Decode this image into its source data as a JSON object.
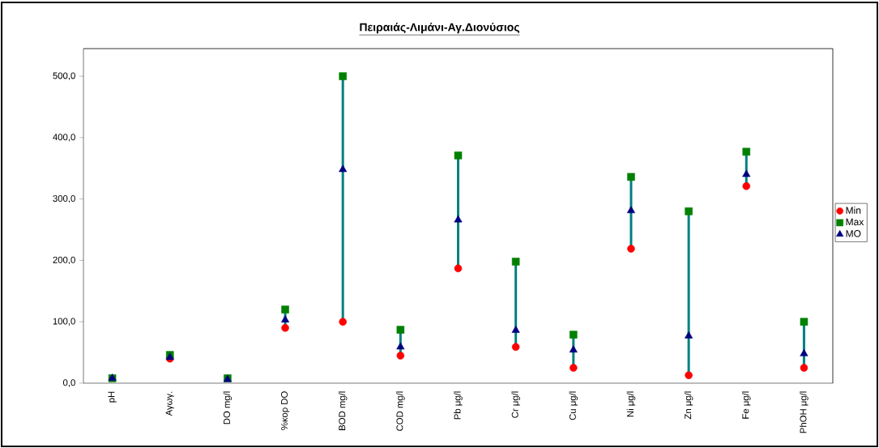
{
  "chart_data": {
    "type": "scatter",
    "title": "Πειραιάς-Λιμάνι-Αγ.Διονύσιος",
    "categories": [
      "pH",
      "Αγωγ.",
      "DO mg/l",
      "%κορ DO",
      "BOD mg/l",
      "COD mg/l",
      "Pb μg/l",
      "Cr μg/l",
      "Cu μg/l",
      "Ni μg/l",
      "Zn μg/l",
      "Fe μg/l",
      "PhOH μg/l"
    ],
    "series": [
      {
        "name": "Min",
        "color": "#ff0000",
        "marker": "circle",
        "values": [
          null,
          40,
          null,
          90,
          100,
          45,
          187,
          59,
          25,
          219,
          13,
          321,
          25
        ]
      },
      {
        "name": "Max",
        "color": "#008000",
        "marker": "square",
        "values": [
          8,
          46,
          8,
          120,
          500,
          87,
          371,
          198,
          79,
          336,
          280,
          377,
          100
        ]
      },
      {
        "name": "MO",
        "color": "#000080",
        "marker": "triangle",
        "values": [
          8,
          42,
          6,
          103,
          348,
          59,
          266,
          86,
          54,
          281,
          77,
          340,
          48
        ]
      }
    ],
    "ylim": [
      0,
      545
    ],
    "yticks": [
      {
        "value": 0,
        "label": "0,0"
      },
      {
        "value": 100,
        "label": "100,0"
      },
      {
        "value": 200,
        "label": "200,0"
      },
      {
        "value": 300,
        "label": "300,0"
      },
      {
        "value": 400,
        "label": "400,0"
      },
      {
        "value": 500,
        "label": "500,0"
      }
    ],
    "grid": false,
    "legend": "right"
  }
}
